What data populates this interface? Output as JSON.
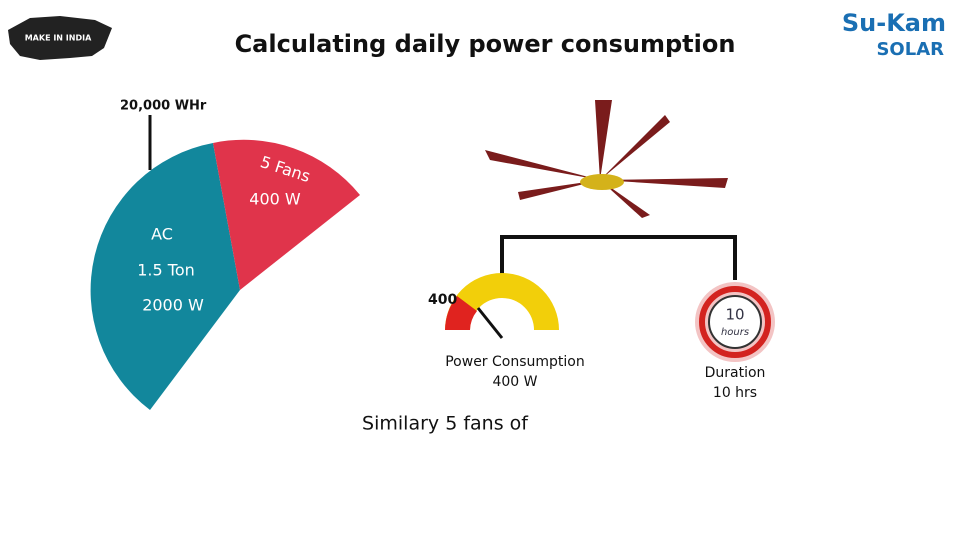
{
  "header": {
    "title": "Calculating daily power consumption",
    "left_logo": "MAKE IN INDIA",
    "right_logo": {
      "brand": "Su-Kam",
      "sub": "SOLAR"
    }
  },
  "pie": {
    "marker": "20,000 WHr",
    "segments": [
      {
        "lines": [
          "AC",
          "1.5 Ton",
          "2000 W"
        ]
      },
      {
        "lines": [
          "5 Fans",
          "400 W"
        ]
      }
    ]
  },
  "gauge": {
    "reading": "400",
    "label": "Power Consumption",
    "value": "400 W"
  },
  "clock": {
    "number": "10",
    "unit": "hours",
    "label": "Duration",
    "value": "10 hrs"
  },
  "caption": "Similary 5 fans of"
}
